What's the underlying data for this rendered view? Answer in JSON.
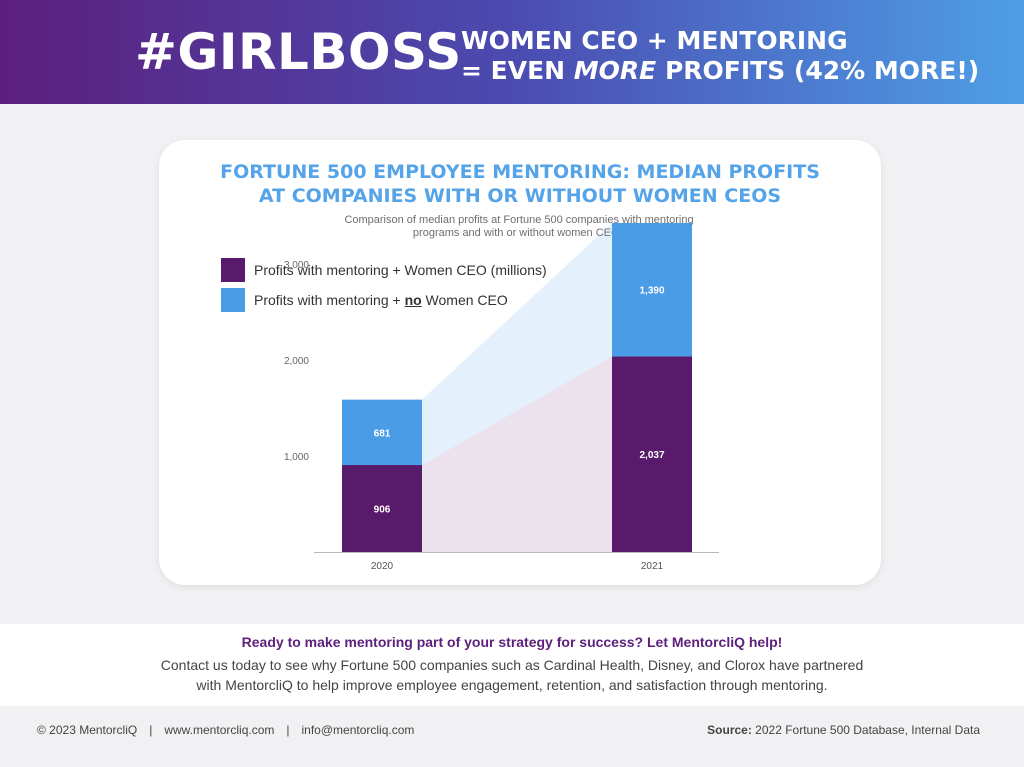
{
  "header": {
    "brand": "#GIRLBOSS",
    "headline_line1": "WOMEN CEO + MENTORING",
    "headline_line2_a": "= EVEN ",
    "headline_line2_em": "MORE",
    "headline_line2_b": " PROFITS (42% MORE!)"
  },
  "card": {
    "title_line1": "FORTUNE 500 EMPLOYEE MENTORING: MEDIAN PROFITS",
    "title_line2": "AT COMPANIES WITH OR WITHOUT WOMEN CEOS",
    "subtitle_line1": "Comparison of median profits at Fortune 500 companies with mentoring",
    "subtitle_line2": "programs and with or without women CEOs",
    "legend": [
      {
        "label": "Profits with mentoring + Women CEO (millions)",
        "color": "#5a1a6b"
      },
      {
        "label_before": "Profits with mentoring + ",
        "label_underline": "no",
        "label_after": " Women CEO",
        "color": "#4a9ce6"
      }
    ]
  },
  "chart_data": {
    "type": "bar",
    "stacked": true,
    "categories": [
      "2020",
      "2021"
    ],
    "series": [
      {
        "name": "Profits with mentoring + Women CEO (millions)",
        "values": [
          906,
          2037
        ],
        "color": "#5a1a6b"
      },
      {
        "name": "Profits with mentoring + no Women CEO",
        "values": [
          681,
          1390
        ],
        "color": "#4a9ce6"
      }
    ],
    "ylim": [
      0,
      3000
    ],
    "yticks": [
      1000,
      2000,
      3000
    ],
    "ytick_labels": [
      "1,000",
      "2,000",
      "3,000"
    ],
    "value_labels": [
      [
        "906",
        "2,037"
      ],
      [
        "681",
        "1,390"
      ]
    ],
    "grid": false,
    "legend_position": "top-left"
  },
  "cta": {
    "title": "Ready to make mentoring part of your strategy for success? Let MentorcliQ help!",
    "body_line1": "Contact us today to see why Fortune 500 companies such as Cardinal Health, Disney, and Clorox have partnered",
    "body_line2": "with MentorcliQ to help improve employee engagement, retention, and satisfaction through mentoring."
  },
  "footer": {
    "copyright": "© 2023 MentorcliQ",
    "separator": "|",
    "website": "www.mentorcliq.com",
    "email": "info@mentorcliq.com",
    "source_label": "Source:",
    "source_text": " 2022 Fortune 500 Database, Internal Data"
  }
}
